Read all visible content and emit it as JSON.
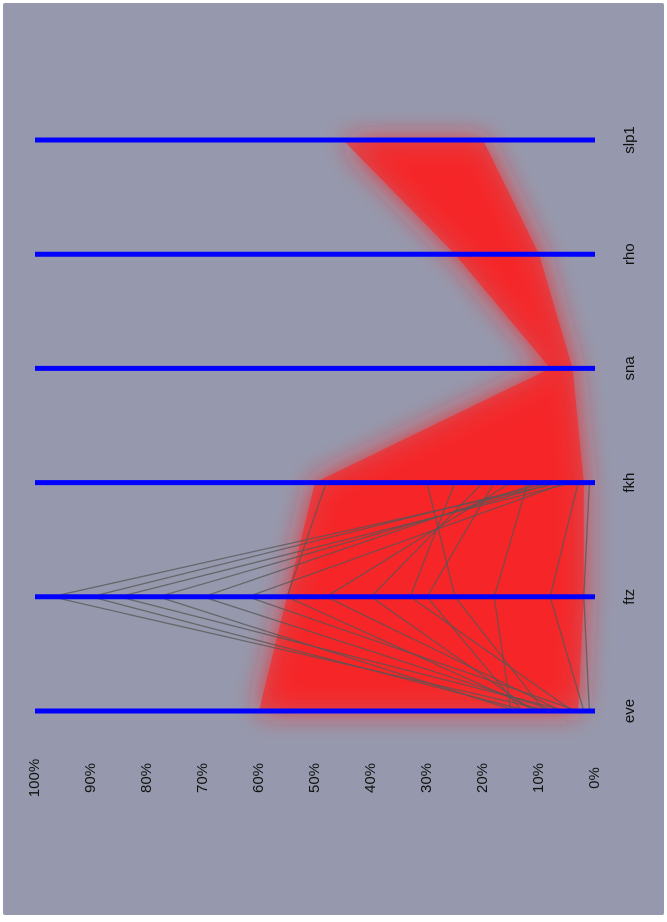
{
  "chart_data": {
    "type": "parallel-coordinates",
    "orientation": "rotated 90° clockwise",
    "categories": [
      "eve",
      "ftz",
      "fkh",
      "sna",
      "rho",
      "slp1"
    ],
    "y_ticks": [
      "0%",
      "10%",
      "20%",
      "30%",
      "40%",
      "50%",
      "60%",
      "70%",
      "80%",
      "90%",
      "100%"
    ],
    "ylim": [
      0,
      100
    ],
    "colors": {
      "background": "#9699ad",
      "axis": "#0000ff",
      "gray_lines": "#555555",
      "red_band": "#ff1a1a"
    },
    "series": [
      {
        "color": "red",
        "lower": [
          3,
          2,
          2,
          4,
          10,
          20
        ],
        "upper": [
          60,
          55,
          50,
          8,
          25,
          45
        ]
      },
      {
        "color": "gray",
        "profiles": [
          [
            8,
            97,
            6,
            null,
            null,
            null
          ],
          [
            12,
            90,
            8,
            null,
            null,
            null
          ],
          [
            5,
            85,
            4,
            null,
            null,
            null
          ],
          [
            14,
            78,
            7,
            null,
            null,
            null
          ],
          [
            7,
            70,
            10,
            null,
            null,
            null
          ],
          [
            3,
            62,
            5,
            null,
            null,
            null
          ],
          [
            10,
            55,
            48,
            null,
            null,
            null
          ],
          [
            6,
            48,
            15,
            null,
            null,
            null
          ],
          [
            11,
            40,
            20,
            null,
            null,
            null
          ],
          [
            4,
            33,
            25,
            null,
            null,
            null
          ],
          [
            9,
            25,
            30,
            null,
            null,
            null
          ],
          [
            15,
            18,
            12,
            null,
            null,
            null
          ],
          [
            2,
            8,
            3,
            null,
            null,
            null
          ],
          [
            1,
            2,
            1,
            null,
            null,
            null
          ],
          [
            13,
            30,
            18,
            null,
            null,
            null
          ]
        ]
      }
    ]
  }
}
